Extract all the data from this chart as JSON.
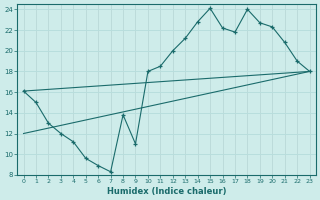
{
  "xlabel": "Humidex (Indice chaleur)",
  "background_color": "#ceecea",
  "grid_color": "#b8dedd",
  "line_color": "#1a6b6b",
  "xlim": [
    -0.5,
    23.5
  ],
  "ylim": [
    8,
    24.5
  ],
  "xticks": [
    0,
    1,
    2,
    3,
    4,
    5,
    6,
    7,
    8,
    9,
    10,
    11,
    12,
    13,
    14,
    15,
    16,
    17,
    18,
    19,
    20,
    21,
    22,
    23
  ],
  "yticks": [
    8,
    10,
    12,
    14,
    16,
    18,
    20,
    22,
    24
  ],
  "line1_x": [
    0,
    1,
    2,
    3,
    4,
    5,
    6,
    7,
    8,
    9,
    10,
    11,
    12,
    13,
    14,
    15,
    16,
    17,
    18,
    19,
    20,
    21,
    22,
    23
  ],
  "line1_y": [
    16.1,
    15.0,
    13.0,
    12.0,
    11.2,
    9.6,
    8.9,
    8.3,
    13.8,
    11.0,
    18.0,
    18.5,
    20.0,
    21.2,
    22.8,
    24.1,
    22.2,
    21.8,
    24.0,
    22.7,
    22.3,
    20.8,
    19.0,
    18.0
  ],
  "line2_x": [
    0,
    23
  ],
  "line2_y": [
    12.0,
    18.0
  ],
  "line3_x": [
    0,
    23
  ],
  "line3_y": [
    16.1,
    18.0
  ],
  "marker_indices1": [
    0,
    1,
    2,
    3,
    4,
    5,
    6,
    7,
    8,
    9,
    10,
    11,
    12,
    13,
    14,
    15,
    16,
    17,
    18,
    19,
    20,
    21,
    22,
    23
  ]
}
